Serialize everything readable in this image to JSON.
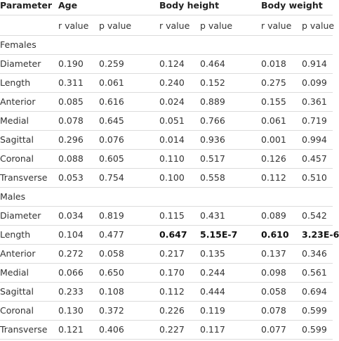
{
  "table": {
    "header": [
      "Parameter",
      "Age",
      "Body height",
      "Body weight"
    ],
    "subheader": [
      "r value",
      "p value",
      "r value",
      "p value",
      "r value",
      "p value"
    ],
    "groups": [
      {
        "label": "Females",
        "rows": [
          [
            "Diameter",
            "0.190",
            "0.259",
            "0.124",
            "0.464",
            "0.018",
            "0.914"
          ],
          [
            "Length",
            "0.311",
            "0.061",
            "0.240",
            "0.152",
            "0.275",
            "0.099"
          ],
          [
            "Anterior",
            "0.085",
            "0.616",
            "0.024",
            "0.889",
            "0.155",
            "0.361"
          ],
          [
            "Medial",
            "0.078",
            "0.645",
            "0.051",
            "0.766",
            "0.061",
            "0.719"
          ],
          [
            "Sagittal",
            "0.296",
            "0.076",
            "0.014",
            "0.936",
            "0.001",
            "0.994"
          ],
          [
            "Coronal",
            "0.088",
            "0.605",
            "0.110",
            "0.517",
            "0.126",
            "0.457"
          ],
          [
            "Transverse",
            "0.053",
            "0.754",
            "0.100",
            "0.558",
            "0.112",
            "0.510"
          ]
        ]
      },
      {
        "label": "Males",
        "rows": [
          [
            "Diameter",
            "0.034",
            "0.819",
            "0.115",
            "0.431",
            "0.089",
            "0.542"
          ],
          [
            "Length",
            "0.104",
            "0.477",
            "0.647",
            "5.15E-7",
            "0.610",
            "3.23E-6"
          ],
          [
            "Anterior",
            "0.272",
            "0.058",
            "0.217",
            "0.135",
            "0.137",
            "0.346"
          ],
          [
            "Medial",
            "0.066",
            "0.650",
            "0.170",
            "0.244",
            "0.098",
            "0.561"
          ],
          [
            "Sagittal",
            "0.233",
            "0.108",
            "0.112",
            "0.444",
            "0.058",
            "0.694"
          ],
          [
            "Coronal",
            "0.130",
            "0.372",
            "0.226",
            "0.119",
            "0.078",
            "0.599"
          ],
          [
            "Transverse",
            "0.121",
            "0.406",
            "0.227",
            "0.117",
            "0.077",
            "0.599"
          ]
        ]
      }
    ]
  }
}
